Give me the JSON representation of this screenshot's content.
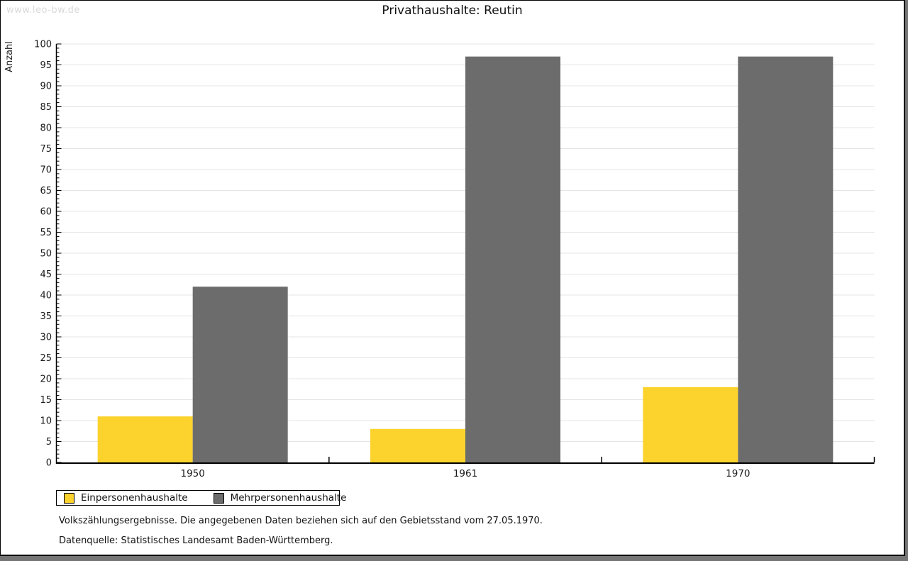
{
  "page": {
    "watermark": "www.leo-bw.de",
    "title": "Privathaushalte: Reutin"
  },
  "chart_data": {
    "type": "bar",
    "title": "Privathaushalte: Reutin",
    "ylabel": "Anzahl",
    "xlabel": "",
    "categories": [
      "1950",
      "1961",
      "1970"
    ],
    "series": [
      {
        "name": "Einpersonenhaushalte",
        "color": "#FCD32D",
        "values": [
          11,
          8,
          18
        ]
      },
      {
        "name": "Mehrpersonenhaushalte",
        "color": "#6C6C6C",
        "values": [
          42,
          97,
          97
        ]
      }
    ],
    "ylim": [
      0,
      100
    ],
    "ytick_step": 5,
    "minor_tick_step": 1,
    "grid": true,
    "gridline_color": "#e4e4e4",
    "legend_position": "bottom-left"
  },
  "footer": {
    "line1": "Volkszählungsergebnisse. Die angegebenen Daten beziehen sich auf den Gebietsstand vom 27.05.1970.",
    "line2": "Datenquelle: Statistisches Landesamt Baden-Württemberg."
  }
}
